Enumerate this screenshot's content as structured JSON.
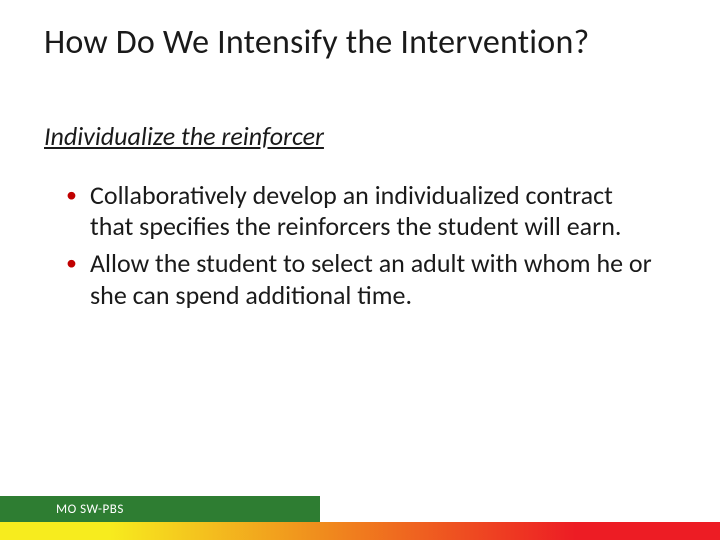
{
  "title": "How Do We Intensify the Intervention?",
  "subtitle": "Individualize the reinforcer",
  "bullets": [
    "Collaboratively develop an individualized contract that specifies the reinforcers the student will earn.",
    "Allow the student to select an adult with whom he or she can spend additional time."
  ],
  "footer": {
    "label": "MO SW-PBS"
  },
  "colors": {
    "bullet_marker": "#c00000",
    "green_bar": "#2e7d32",
    "gradient_start": "#f7ec1e",
    "gradient_mid": "#f08b1d",
    "gradient_end": "#ed1c24",
    "text": "#1a1a1a",
    "background": "#ffffff"
  },
  "typography": {
    "title_fontsize": 34,
    "subtitle_fontsize": 26,
    "bullet_fontsize": 26,
    "footer_fontsize": 13
  }
}
